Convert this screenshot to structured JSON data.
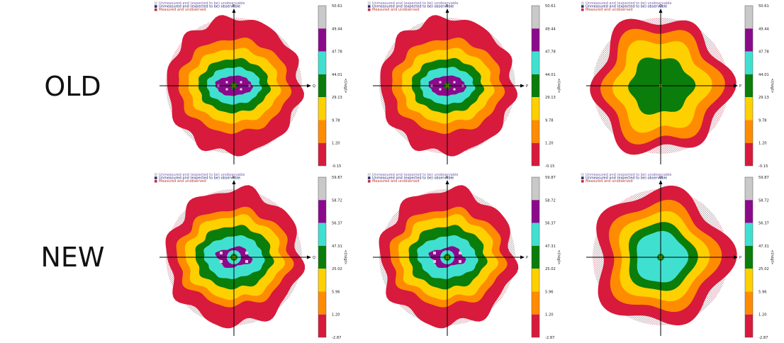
{
  "rows": [
    {
      "label": "OLD",
      "panels": [
        {
          "axes": {
            "vertical": "R",
            "horizontal": "Q"
          },
          "shape": "ellipse",
          "center_dots": true
        },
        {
          "axes": {
            "vertical": "R",
            "horizontal": "P"
          },
          "shape": "ellipse",
          "center_dots": true
        },
        {
          "axes": {
            "vertical": "Q",
            "horizontal": "P"
          },
          "shape": "star"
        }
      ],
      "colorbar": {
        "ticks": [
          "50.61",
          "49.44",
          "47.78",
          "44.01",
          "29.13",
          "9.78",
          "1.20",
          "-0.15"
        ],
        "label": "<I/sigI>"
      }
    },
    {
      "label": "NEW",
      "panels": [
        {
          "axes": {
            "vertical": "R",
            "horizontal": "Q"
          },
          "shape": "butterfly"
        },
        {
          "axes": {
            "vertical": "R",
            "horizontal": "P"
          },
          "shape": "butterfly"
        },
        {
          "axes": {
            "vertical": "Q",
            "horizontal": "P"
          },
          "shape": "star"
        }
      ],
      "colorbar": {
        "ticks": [
          "59.87",
          "58.72",
          "56.37",
          "47.31",
          "25.02",
          "5.96",
          "1.20",
          "-2.87"
        ],
        "label": "<I/sigI>"
      }
    }
  ],
  "legend": [
    {
      "text": "Unmeasured and (expected to be) unobservable",
      "color": "#dcdcdc"
    },
    {
      "text": "Unmeasured and (expected to be) observable",
      "color": "#1a237e"
    },
    {
      "text": "Measured and unobserved",
      "color": "#d81a3c"
    }
  ],
  "colors": {
    "unobservable": "#d9d9d9",
    "observable": "#1a237e",
    "unobserved": "#d81a3c",
    "bands": [
      "#bdbdbd",
      "#8b0a8b",
      "#40e0d0",
      "#0a7d0a",
      "#ffd000",
      "#ff8c00",
      "#d81a3c"
    ]
  }
}
